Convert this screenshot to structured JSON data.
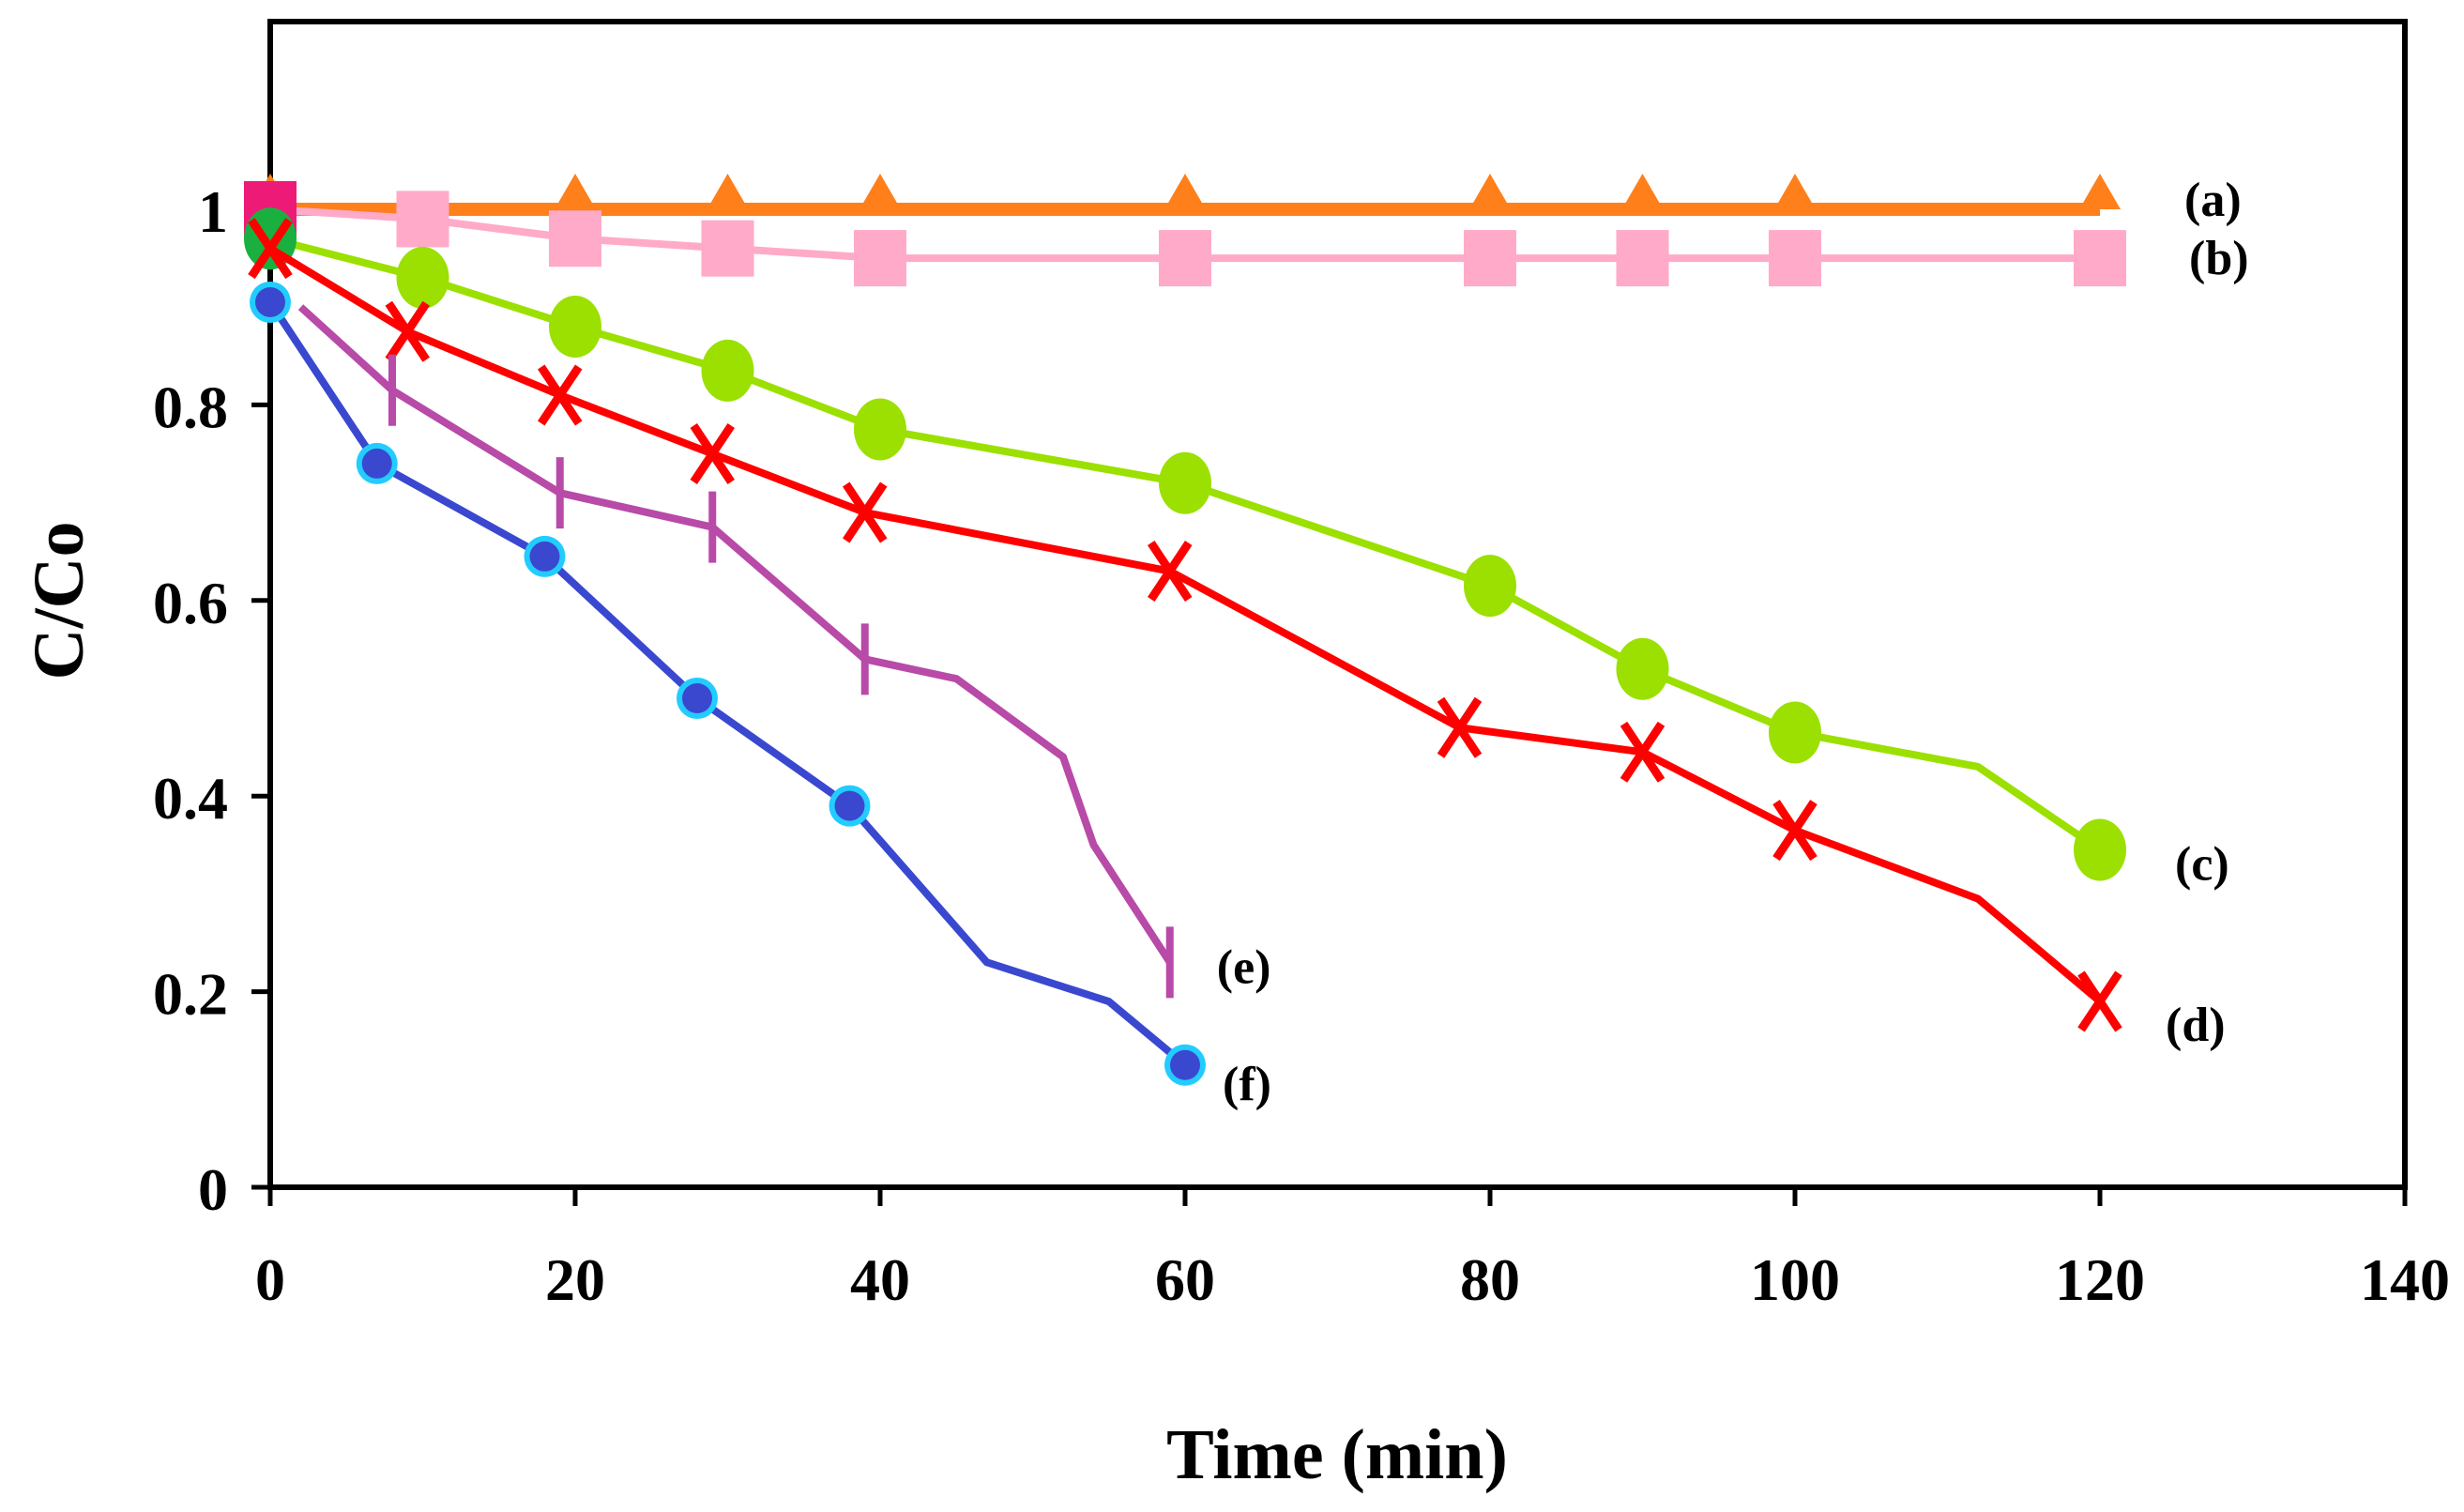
{
  "chart_data": {
    "type": "line",
    "title": "",
    "xlabel": "Time (min)",
    "ylabel": "C/Co",
    "xlim": [
      0,
      140
    ],
    "ylim": [
      0,
      1.19
    ],
    "xticks": [
      0,
      20,
      40,
      60,
      80,
      100,
      120,
      140
    ],
    "xtick_labels": [
      "0",
      "20",
      "40",
      "60",
      "80",
      "100",
      "120",
      "140"
    ],
    "yticks": [
      0,
      0.2,
      0.4,
      0.6,
      0.8,
      1
    ],
    "ytick_labels": [
      "0",
      "0.2",
      "0.4",
      "0.6",
      "0.8",
      "1"
    ],
    "grid": false,
    "legend": "none (inline labels at right end of each curve)",
    "series": [
      {
        "name": "(a)",
        "color": "#ff7f1a",
        "marker": "triangle",
        "x": [
          0,
          20,
          30,
          40,
          60,
          80,
          90,
          100,
          120
        ],
        "y": [
          1.0,
          1.0,
          1.0,
          1.0,
          1.0,
          1.0,
          1.0,
          1.0,
          1.0
        ]
      },
      {
        "name": "(b)",
        "color": "#ffaac8",
        "marker": "square",
        "x": [
          0,
          10,
          20,
          30,
          40,
          60,
          80,
          90,
          100,
          120
        ],
        "y": [
          1.0,
          0.99,
          0.97,
          0.96,
          0.95,
          0.95,
          0.95,
          0.95,
          0.95,
          0.95
        ]
      },
      {
        "name": "(c)",
        "color": "#9be000",
        "marker": "circle",
        "x": [
          0,
          10,
          20,
          30,
          40,
          60,
          80,
          90,
          100,
          112,
          120
        ],
        "y": [
          0.97,
          0.93,
          0.88,
          0.835,
          0.775,
          0.72,
          0.615,
          0.53,
          0.465,
          0.43,
          0.345
        ],
        "marked": [
          true,
          true,
          true,
          true,
          true,
          true,
          true,
          true,
          true,
          false,
          true
        ]
      },
      {
        "name": "(d)",
        "color": "#ff0000",
        "marker": "x",
        "x": [
          0,
          9,
          19,
          29,
          39,
          59,
          78,
          90,
          100,
          112,
          120
        ],
        "y": [
          0.96,
          0.875,
          0.81,
          0.75,
          0.69,
          0.63,
          0.47,
          0.445,
          0.365,
          0.295,
          0.19
        ],
        "marked": [
          true,
          true,
          true,
          true,
          true,
          true,
          true,
          true,
          true,
          false,
          true
        ]
      },
      {
        "name": "(e)",
        "color": "#b84aa8",
        "marker": "vbar",
        "x": [
          2,
          8,
          19,
          29,
          39,
          45,
          52,
          54,
          59
        ],
        "y": [
          0.9,
          0.815,
          0.71,
          0.675,
          0.54,
          0.52,
          0.44,
          0.35,
          0.23
        ],
        "marked": [
          false,
          true,
          true,
          true,
          true,
          false,
          false,
          false,
          true
        ]
      },
      {
        "name": "(f)",
        "color": "#3a48d0",
        "marker": "dot",
        "x": [
          0,
          7,
          18,
          28,
          38,
          47,
          55,
          60
        ],
        "y": [
          0.905,
          0.74,
          0.645,
          0.5,
          0.39,
          0.23,
          0.19,
          0.125
        ],
        "marked": [
          true,
          true,
          true,
          true,
          true,
          false,
          false,
          true
        ]
      }
    ]
  }
}
